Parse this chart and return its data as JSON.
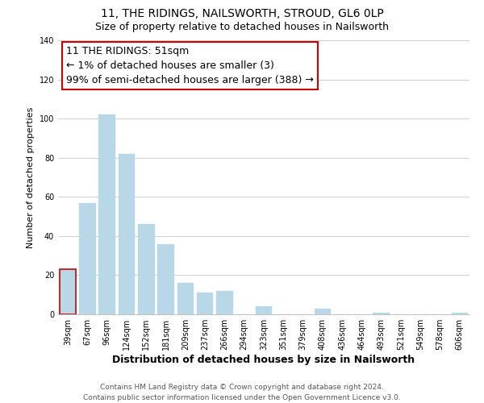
{
  "title": "11, THE RIDINGS, NAILSWORTH, STROUD, GL6 0LP",
  "subtitle": "Size of property relative to detached houses in Nailsworth",
  "xlabel": "Distribution of detached houses by size in Nailsworth",
  "ylabel": "Number of detached properties",
  "bar_color": "#b8d8e8",
  "bar_edge_color": "#b8d8e8",
  "highlight_bar_edge_color": "#cc0000",
  "categories": [
    "39sqm",
    "67sqm",
    "96sqm",
    "124sqm",
    "152sqm",
    "181sqm",
    "209sqm",
    "237sqm",
    "266sqm",
    "294sqm",
    "323sqm",
    "351sqm",
    "379sqm",
    "408sqm",
    "436sqm",
    "464sqm",
    "493sqm",
    "521sqm",
    "549sqm",
    "578sqm",
    "606sqm"
  ],
  "values": [
    23,
    57,
    102,
    82,
    46,
    36,
    16,
    11,
    12,
    0,
    4,
    0,
    0,
    3,
    0,
    0,
    1,
    0,
    0,
    0,
    1
  ],
  "highlight_index": 0,
  "annotation_line1": "11 THE RIDINGS: 51sqm",
  "annotation_line2": "← 1% of detached houses are smaller (3)",
  "annotation_line3": "99% of semi-detached houses are larger (388) →",
  "annotation_box_color": "#ffffff",
  "annotation_box_edge_color": "#cc0000",
  "ylim": [
    0,
    140
  ],
  "yticks": [
    0,
    20,
    40,
    60,
    80,
    100,
    120,
    140
  ],
  "footer_line1": "Contains HM Land Registry data © Crown copyright and database right 2024.",
  "footer_line2": "Contains public sector information licensed under the Open Government Licence v3.0.",
  "bg_color": "#ffffff",
  "grid_color": "#d0d0d0",
  "title_fontsize": 10,
  "subtitle_fontsize": 9,
  "annotation_fontsize": 9,
  "xlabel_fontsize": 9,
  "ylabel_fontsize": 8,
  "tick_fontsize": 7,
  "footer_fontsize": 6.5
}
